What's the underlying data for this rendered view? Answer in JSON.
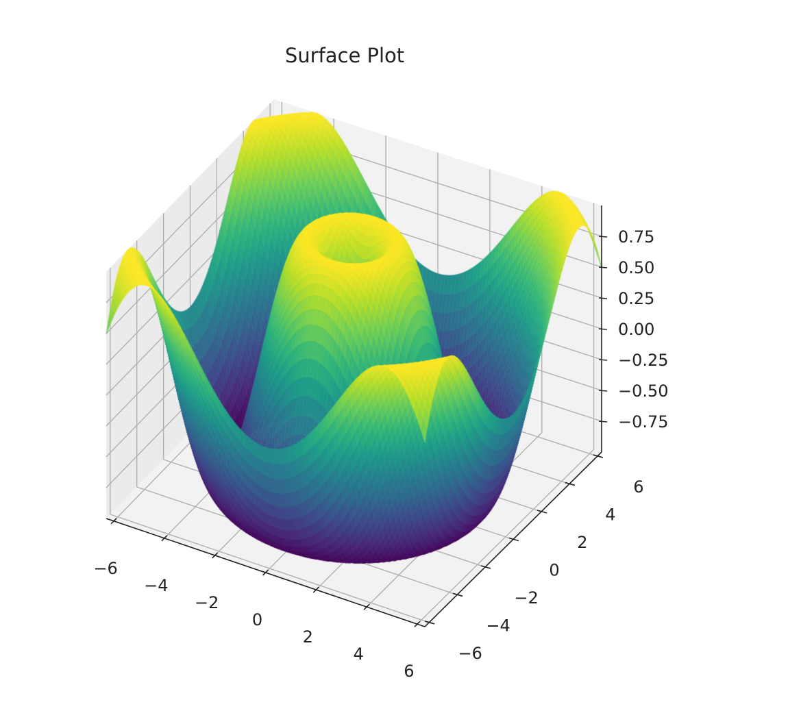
{
  "chart_data": {
    "type": "surface3d",
    "title": "Surface Plot",
    "function": "z = sin(sqrt(x^2 + y^2))",
    "colormap": "viridis",
    "xlabel": "",
    "ylabel": "",
    "zlabel": "",
    "x_range": [
      -6.3,
      6.3
    ],
    "y_range": [
      -6.3,
      6.3
    ],
    "z_range": [
      -1.0,
      1.0
    ],
    "x_ticks": [
      "−6",
      "−4",
      "−2",
      "0",
      "2",
      "4",
      "6"
    ],
    "y_ticks": [
      "−6",
      "−4",
      "−2",
      "0",
      "2",
      "4",
      "6"
    ],
    "z_ticks": [
      "−0.75",
      "−0.50",
      "−0.25",
      "0.00",
      "0.25",
      "0.50",
      "0.75"
    ],
    "grid": true,
    "legend": null
  },
  "colors": {
    "pane": "#f2f2f2",
    "pane_side": "#ebebeb",
    "grid": "#b0b0b0",
    "axis": "#222222",
    "viridis": [
      "#440154",
      "#482878",
      "#3e4989",
      "#31688e",
      "#26828e",
      "#1f9e89",
      "#35b779",
      "#6ece58",
      "#b5de2b",
      "#fde725"
    ]
  }
}
